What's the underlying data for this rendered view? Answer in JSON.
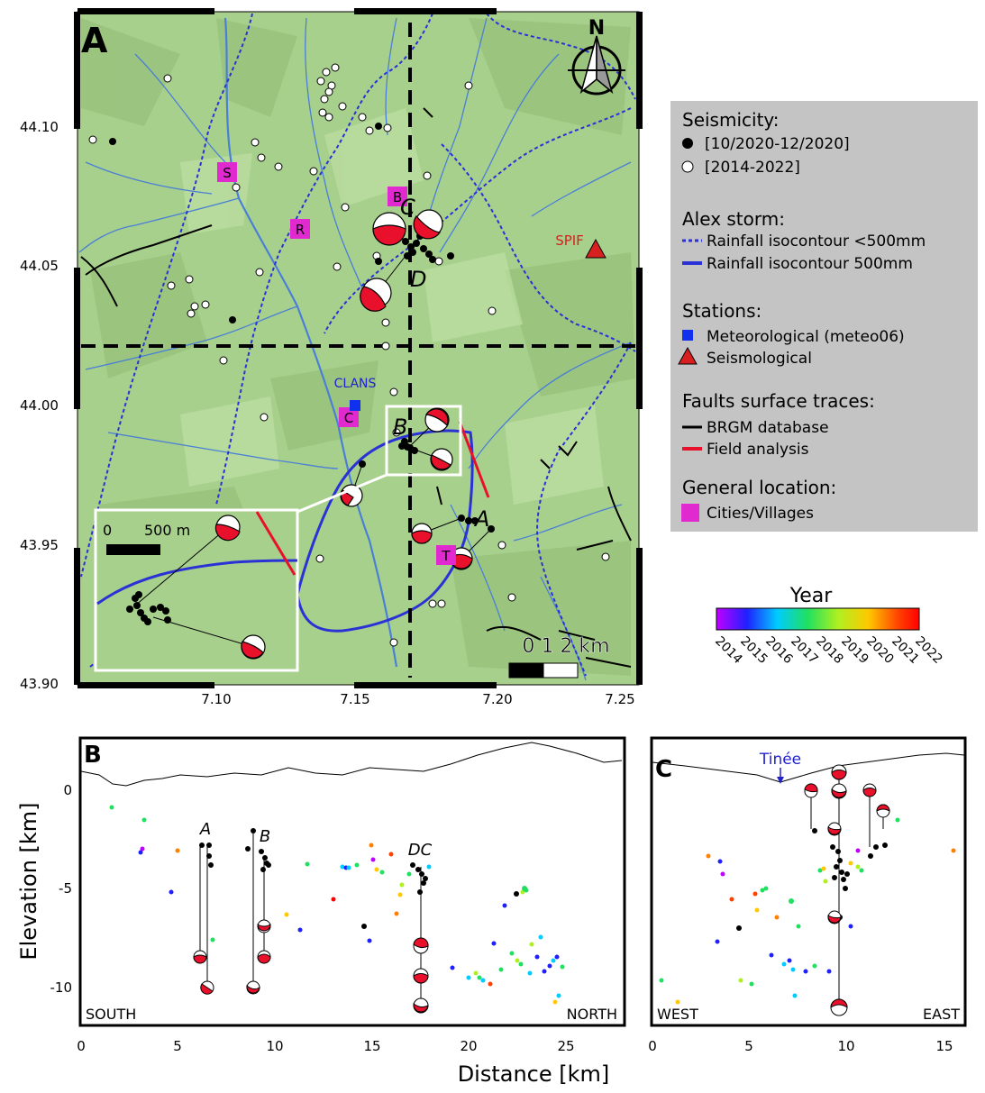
{
  "map": {
    "panel_label": "A",
    "north_label": "N",
    "lat_ticks": [
      "44.10",
      "44.05",
      "44.00",
      "43.95",
      "43.90"
    ],
    "lon_ticks": [
      "7.10",
      "7.15",
      "7.20",
      "7.25"
    ],
    "place_markers": [
      {
        "label": "S"
      },
      {
        "label": "R"
      },
      {
        "label": "B"
      },
      {
        "label": "C"
      },
      {
        "label": "T"
      }
    ],
    "cluster_labels": [
      "C",
      "D",
      "B",
      "A"
    ],
    "station_labels": {
      "meteo": "CLANS",
      "seismo": "SPIF"
    },
    "scalebar": {
      "label": "0   1   2 km"
    },
    "inset": {
      "scale_zero": "0",
      "scale_label": "500 m"
    },
    "colors": {
      "terrain": "#a8d08d",
      "river": "#4a7fd6",
      "rain_contour": "#2a32d6",
      "fault_field": "#e8102a",
      "place": "#e02ad0",
      "meteo_station": "#1030ee",
      "seismo_station": "#d82020"
    }
  },
  "legend": {
    "seismicity_title": "Seismicity:",
    "seis_recent": "[10/2020-12/2020]",
    "seis_all": "[2014-2022]",
    "alex_title": "Alex storm:",
    "rain_dashed": "Rainfall isocontour <500mm",
    "rain_solid": "Rainfall isocontour 500mm",
    "stations_title": "Stations:",
    "station_meteo": "Meteorological (meteo06)",
    "station_seismo": "Seismological",
    "faults_title": "Faults surface traces:",
    "fault_brgm": "BRGM database",
    "fault_field": "Field analysis",
    "general_title": "General location:",
    "cities": "Cities/Villages"
  },
  "colorbar": {
    "title": "Year",
    "ticks": [
      "2014",
      "2015",
      "2016",
      "2017",
      "2018",
      "2019",
      "2020",
      "2021",
      "2022"
    ]
  },
  "section_b": {
    "panel_label": "B",
    "left_label": "SOUTH",
    "right_label": "NORTH",
    "cluster_labels": [
      "A",
      "B",
      "DC"
    ],
    "x_ticks": [
      "0",
      "5",
      "10",
      "15",
      "20",
      "25"
    ],
    "y_ticks": [
      "0",
      "-5",
      "-10"
    ]
  },
  "section_c": {
    "panel_label": "C",
    "left_label": "WEST",
    "right_label": "EAST",
    "river_label": "Tinée",
    "x_ticks": [
      "0",
      "5",
      "10",
      "15"
    ]
  },
  "axes": {
    "ylabel": "Elevation [km]",
    "xlabel": "Distance [km]"
  }
}
